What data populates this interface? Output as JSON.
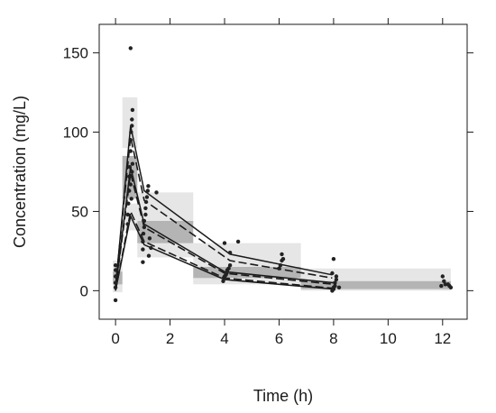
{
  "chart_data": {
    "type": "scatter",
    "xlabel": "Time (h)",
    "ylabel": "Concentration (mg/L)",
    "xlim": [
      -0.6,
      12.9
    ],
    "ylim": [
      -18,
      168
    ],
    "x_ticks": [
      0,
      2,
      4,
      6,
      8,
      10,
      12
    ],
    "y_ticks": [
      0,
      50,
      100,
      150
    ],
    "grid": false,
    "colors": {
      "points": "#222222",
      "lines": "#1a1a1a",
      "band_outer": "#e6e6e6",
      "band_median": "#b4b4b4"
    },
    "bands": [
      {
        "x0": -0.1,
        "x1": 0.25,
        "outer_p95": [
          0,
          19
        ],
        "outer_p50": [
          4,
          12
        ],
        "outer_p5": [
          -1,
          4
        ]
      },
      {
        "x0": 0.25,
        "x1": 0.8,
        "outer_p95": [
          90,
          122
        ],
        "outer_p50": [
          58,
          85
        ],
        "outer_p5": [
          38,
          55
        ]
      },
      {
        "x0": 0.8,
        "x1": 2.85,
        "outer_p95": [
          43,
          62
        ],
        "outer_p50": [
          30,
          44
        ],
        "outer_p5": [
          21,
          33
        ]
      },
      {
        "x0": 2.85,
        "x1": 6.8,
        "outer_p95": [
          15,
          30
        ],
        "outer_p50": [
          8,
          15
        ],
        "outer_p5": [
          4,
          9
        ]
      },
      {
        "x0": 6.8,
        "x1": 12.3,
        "outer_p95": [
          4,
          14
        ],
        "outer_p50": [
          1,
          6
        ],
        "outer_p5": [
          0,
          3
        ]
      }
    ],
    "observed": [
      {
        "name": "obs_p95",
        "style": "solid",
        "points": [
          [
            0,
            2
          ],
          [
            0.55,
            104
          ],
          [
            1.05,
            63
          ],
          [
            4.2,
            23
          ],
          [
            7.95,
            10
          ]
        ]
      },
      {
        "name": "obs_p50",
        "style": "solid",
        "points": [
          [
            0,
            1
          ],
          [
            0.55,
            78
          ],
          [
            1.05,
            42
          ],
          [
            4.0,
            12
          ],
          [
            8.0,
            5
          ]
        ]
      },
      {
        "name": "obs_p5",
        "style": "solid",
        "points": [
          [
            0,
            0
          ],
          [
            0.55,
            47
          ],
          [
            1.05,
            29
          ],
          [
            4.0,
            7
          ],
          [
            8.0,
            1
          ]
        ]
      }
    ],
    "predicted": [
      {
        "name": "pred_p95",
        "style": "dashed",
        "points": [
          [
            0,
            3
          ],
          [
            0.55,
            97
          ],
          [
            1.05,
            57
          ],
          [
            4.2,
            19
          ],
          [
            7.95,
            8
          ]
        ]
      },
      {
        "name": "pred_p50",
        "style": "dashed",
        "points": [
          [
            0,
            1
          ],
          [
            0.55,
            74
          ],
          [
            1.05,
            40
          ],
          [
            4.0,
            11
          ],
          [
            8.0,
            4
          ]
        ]
      },
      {
        "name": "pred_p5",
        "style": "dashed",
        "points": [
          [
            0,
            0
          ],
          [
            0.55,
            50
          ],
          [
            1.05,
            31
          ],
          [
            4.0,
            8
          ],
          [
            8.0,
            1.5
          ]
        ]
      }
    ],
    "points": [
      [
        0,
        -6
      ],
      [
        0,
        2
      ],
      [
        0,
        5
      ],
      [
        0,
        9
      ],
      [
        0,
        13
      ],
      [
        0,
        16
      ],
      [
        0.45,
        42
      ],
      [
        0.47,
        55
      ],
      [
        0.5,
        63
      ],
      [
        0.5,
        72
      ],
      [
        0.52,
        78
      ],
      [
        0.55,
        88
      ],
      [
        0.55,
        95
      ],
      [
        0.57,
        100
      ],
      [
        0.6,
        104
      ],
      [
        0.6,
        108
      ],
      [
        0.62,
        114
      ],
      [
        0.55,
        153
      ],
      [
        0.45,
        48
      ],
      [
        0.55,
        67
      ],
      [
        0.6,
        75
      ],
      [
        0.62,
        80
      ],
      [
        0.58,
        58
      ],
      [
        1.0,
        18
      ],
      [
        1.0,
        26
      ],
      [
        1.0,
        31
      ],
      [
        1.02,
        36
      ],
      [
        1.05,
        40
      ],
      [
        1.05,
        44
      ],
      [
        1.1,
        48
      ],
      [
        1.1,
        52
      ],
      [
        1.12,
        56
      ],
      [
        1.15,
        59
      ],
      [
        1.18,
        63
      ],
      [
        1.2,
        66
      ],
      [
        1.22,
        22
      ],
      [
        1.3,
        27
      ],
      [
        1.25,
        33
      ],
      [
        1.5,
        62
      ],
      [
        3.95,
        6
      ],
      [
        4.0,
        8
      ],
      [
        4.0,
        9
      ],
      [
        4.05,
        10
      ],
      [
        4.08,
        11
      ],
      [
        4.1,
        12
      ],
      [
        4.1,
        13
      ],
      [
        4.15,
        14
      ],
      [
        4.2,
        16
      ],
      [
        4.2,
        24
      ],
      [
        4.0,
        30
      ],
      [
        4.5,
        31
      ],
      [
        6.0,
        14
      ],
      [
        6.05,
        16
      ],
      [
        6.1,
        19
      ],
      [
        6.1,
        23
      ],
      [
        6.15,
        20
      ],
      [
        7.95,
        0
      ],
      [
        8.0,
        1
      ],
      [
        8.0,
        2
      ],
      [
        8.05,
        3
      ],
      [
        8.05,
        5
      ],
      [
        8.1,
        7
      ],
      [
        8.1,
        9
      ],
      [
        7.95,
        11
      ],
      [
        8.0,
        20
      ],
      [
        8.2,
        2
      ],
      [
        11.95,
        3
      ],
      [
        12.0,
        9
      ],
      [
        12.05,
        6
      ],
      [
        12.1,
        4
      ],
      [
        12.2,
        4
      ],
      [
        12.25,
        3
      ],
      [
        12.3,
        2
      ]
    ]
  }
}
